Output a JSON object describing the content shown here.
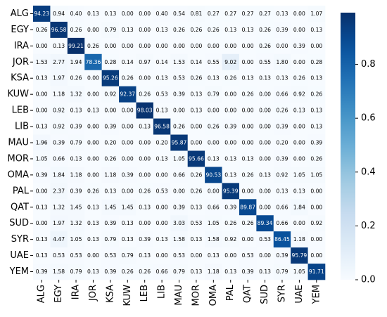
{
  "chart_data": {
    "type": "heatmap",
    "categories": [
      "ALG",
      "EGY",
      "IRA",
      "JOR",
      "KSA",
      "KUW",
      "LEB",
      "LIB",
      "MAU",
      "MOR",
      "OMA",
      "PAL",
      "QAT",
      "SUD",
      "SYR",
      "UAE",
      "YEM"
    ],
    "values": [
      [
        0.9423,
        0.0094,
        0.004,
        0.0013,
        0.0013,
        0,
        0,
        0.004,
        0.0054,
        0.0081,
        0.0027,
        0.0027,
        0.0027,
        0.0027,
        0.0013,
        0,
        0.0107
      ],
      [
        0.0026,
        0.9658,
        0.0026,
        0,
        0.0079,
        0.0013,
        0,
        0.0013,
        0.0026,
        0.0026,
        0.0026,
        0.0013,
        0.0013,
        0.0026,
        0.0039,
        0,
        0.0013
      ],
      [
        0,
        0.0013,
        0.9921,
        0.0026,
        0,
        0,
        0,
        0,
        0,
        0,
        0,
        0,
        0,
        0.0026,
        0,
        0.0039,
        0
      ],
      [
        0.0153,
        0.0277,
        0.0194,
        0.7836,
        0.0028,
        0.0014,
        0.0097,
        0.0014,
        0.0153,
        0.0014,
        0.0055,
        0.0902,
        0,
        0.0055,
        0.018,
        0,
        0.0028
      ],
      [
        0.0013,
        0.0197,
        0.0026,
        0,
        0.9526,
        0.0026,
        0,
        0.0013,
        0.0053,
        0.0026,
        0.0013,
        0.0026,
        0.0013,
        0.0013,
        0.0013,
        0.0026,
        0.0013
      ],
      [
        0,
        0.0118,
        0.0132,
        0,
        0.0092,
        0.9237,
        0.0026,
        0.0053,
        0.0039,
        0.0013,
        0.0079,
        0,
        0.0026,
        0,
        0.0066,
        0.0092,
        0.0026
      ],
      [
        0,
        0.0092,
        0.0013,
        0.0013,
        0,
        0,
        0.9803,
        0.0013,
        0,
        0.0013,
        0,
        0,
        0,
        0,
        0.0026,
        0.0013,
        0.0013
      ],
      [
        0.0013,
        0.0092,
        0.0039,
        0,
        0.0039,
        0,
        0.0013,
        0.9658,
        0.0026,
        0,
        0.0026,
        0.0039,
        0,
        0,
        0.0039,
        0,
        0.0013
      ],
      [
        0.0196,
        0.0039,
        0.0079,
        0,
        0.002,
        0,
        0,
        0.002,
        0.9587,
        0,
        0,
        0,
        0,
        0,
        0.002,
        0,
        0.0039
      ],
      [
        0.0105,
        0.0066,
        0.0013,
        0,
        0.0026,
        0,
        0,
        0.0013,
        0.0105,
        0.9566,
        0.0013,
        0.0013,
        0.0013,
        0,
        0.0039,
        0,
        0.0026
      ],
      [
        0.0039,
        0.0184,
        0.0118,
        0,
        0.0118,
        0.0039,
        0,
        0,
        0.0066,
        0.0026,
        0.9053,
        0.0013,
        0.0026,
        0.0013,
        0.0092,
        0.0105,
        0.0105
      ],
      [
        0,
        0.0237,
        0.0039,
        0.0026,
        0.0013,
        0,
        0.0026,
        0.0053,
        0,
        0.0026,
        0,
        0.9539,
        0,
        0,
        0.0013,
        0.0013,
        0
      ],
      [
        0.0013,
        0.0132,
        0.0145,
        0.0013,
        0.0145,
        0.0145,
        0.0013,
        0,
        0.0039,
        0.0013,
        0.0066,
        0.0039,
        0.8987,
        0,
        0.0066,
        0.0184,
        0
      ],
      [
        0,
        0.0197,
        0.0132,
        0.0013,
        0.0039,
        0.0013,
        0,
        0,
        0.0303,
        0.0053,
        0.0105,
        0.0026,
        0.0026,
        0.8934,
        0.0066,
        0,
        0.0092
      ],
      [
        0.0013,
        0.0447,
        0.0105,
        0.0013,
        0.0079,
        0.0013,
        0.0039,
        0.0013,
        0.0158,
        0.0013,
        0.0158,
        0.0092,
        0,
        0.0053,
        0.8645,
        0.0118,
        0
      ],
      [
        0.0013,
        0.0053,
        0.0053,
        0,
        0.0053,
        0.0079,
        0.0013,
        0,
        0.0053,
        0,
        0.0013,
        0,
        0.0053,
        0,
        0.0039,
        0.9579,
        0
      ],
      [
        0.0039,
        0.0158,
        0.0079,
        0.0013,
        0.0039,
        0.0026,
        0.0026,
        0.0066,
        0.0079,
        0.0013,
        0.0118,
        0.0013,
        0.0039,
        0.0013,
        0.0079,
        0.0105,
        0.9171
      ]
    ],
    "value_labels": [
      [
        "94.23",
        "0.94",
        "0.40",
        "0.13",
        "0.13",
        "0.00",
        "0.00",
        "0.40",
        "0.54",
        "0.81",
        "0.27",
        "0.27",
        "0.27",
        "0.27",
        "0.13",
        "0.00",
        "1.07"
      ],
      [
        "0.26",
        "96.58",
        "0.26",
        "0.00",
        "0.79",
        "0.13",
        "0.00",
        "0.13",
        "0.26",
        "0.26",
        "0.26",
        "0.13",
        "0.13",
        "0.26",
        "0.39",
        "0.00",
        "0.13"
      ],
      [
        "0.00",
        "0.13",
        "99.21",
        "0.26",
        "0.00",
        "0.00",
        "0.00",
        "0.00",
        "0.00",
        "0.00",
        "0.00",
        "0.00",
        "0.00",
        "0.26",
        "0.00",
        "0.39",
        "0.00"
      ],
      [
        "1.53",
        "2.77",
        "1.94",
        "78.36",
        "0.28",
        "0.14",
        "0.97",
        "0.14",
        "1.53",
        "0.14",
        "0.55",
        "9.02",
        "0.00",
        "0.55",
        "1.80",
        "0.00",
        "0.28"
      ],
      [
        "0.13",
        "1.97",
        "0.26",
        "0.00",
        "95.26",
        "0.26",
        "0.00",
        "0.13",
        "0.53",
        "0.26",
        "0.13",
        "0.26",
        "0.13",
        "0.13",
        "0.13",
        "0.26",
        "0.13"
      ],
      [
        "0.00",
        "1.18",
        "1.32",
        "0.00",
        "0.92",
        "92.37",
        "0.26",
        "0.53",
        "0.39",
        "0.13",
        "0.79",
        "0.00",
        "0.26",
        "0.00",
        "0.66",
        "0.92",
        "0.26"
      ],
      [
        "0.00",
        "0.92",
        "0.13",
        "0.13",
        "0.00",
        "0.00",
        "98.03",
        "0.13",
        "0.00",
        "0.13",
        "0.00",
        "0.00",
        "0.00",
        "0.00",
        "0.26",
        "0.13",
        "0.13"
      ],
      [
        "0.13",
        "0.92",
        "0.39",
        "0.00",
        "0.39",
        "0.00",
        "0.13",
        "96.58",
        "0.26",
        "0.00",
        "0.26",
        "0.39",
        "0.00",
        "0.00",
        "0.39",
        "0.00",
        "0.13"
      ],
      [
        "1.96",
        "0.39",
        "0.79",
        "0.00",
        "0.20",
        "0.00",
        "0.00",
        "0.20",
        "95.87",
        "0.00",
        "0.00",
        "0.00",
        "0.00",
        "0.00",
        "0.20",
        "0.00",
        "0.39"
      ],
      [
        "1.05",
        "0.66",
        "0.13",
        "0.00",
        "0.26",
        "0.00",
        "0.00",
        "0.13",
        "1.05",
        "95.66",
        "0.13",
        "0.13",
        "0.13",
        "0.00",
        "0.39",
        "0.00",
        "0.26"
      ],
      [
        "0.39",
        "1.84",
        "1.18",
        "0.00",
        "1.18",
        "0.39",
        "0.00",
        "0.00",
        "0.66",
        "0.26",
        "90.53",
        "0.13",
        "0.26",
        "0.13",
        "0.92",
        "1.05",
        "1.05"
      ],
      [
        "0.00",
        "2.37",
        "0.39",
        "0.26",
        "0.13",
        "0.00",
        "0.26",
        "0.53",
        "0.00",
        "0.26",
        "0.00",
        "95.39",
        "0.00",
        "0.00",
        "0.13",
        "0.13",
        "0.00"
      ],
      [
        "0.13",
        "1.32",
        "1.45",
        "0.13",
        "1.45",
        "1.45",
        "0.13",
        "0.00",
        "0.39",
        "0.13",
        "0.66",
        "0.39",
        "89.87",
        "0.00",
        "0.66",
        "1.84",
        "0.00"
      ],
      [
        "0.00",
        "1.97",
        "1.32",
        "0.13",
        "0.39",
        "0.13",
        "0.00",
        "0.00",
        "3.03",
        "0.53",
        "1.05",
        "0.26",
        "0.26",
        "89.34",
        "0.66",
        "0.00",
        "0.92"
      ],
      [
        "0.13",
        "4.47",
        "1.05",
        "0.13",
        "0.79",
        "0.13",
        "0.39",
        "0.13",
        "1.58",
        "0.13",
        "1.58",
        "0.92",
        "0.00",
        "0.53",
        "86.45",
        "1.18",
        "0.00"
      ],
      [
        "0.13",
        "0.53",
        "0.53",
        "0.00",
        "0.53",
        "0.79",
        "0.13",
        "0.00",
        "0.53",
        "0.00",
        "0.13",
        "0.00",
        "0.53",
        "0.00",
        "0.39",
        "95.79",
        "0.00"
      ],
      [
        "0.39",
        "1.58",
        "0.79",
        "0.13",
        "0.39",
        "0.26",
        "0.26",
        "0.66",
        "0.79",
        "0.13",
        "1.18",
        "0.13",
        "0.39",
        "0.13",
        "0.79",
        "1.05",
        "91.71"
      ]
    ],
    "colormap": "Blues",
    "clim": [
      0,
      0.9921
    ],
    "cticks": [
      {
        "value": 0,
        "label": "0.0"
      },
      0.2,
      0.4,
      0.6,
      0.8
    ]
  }
}
